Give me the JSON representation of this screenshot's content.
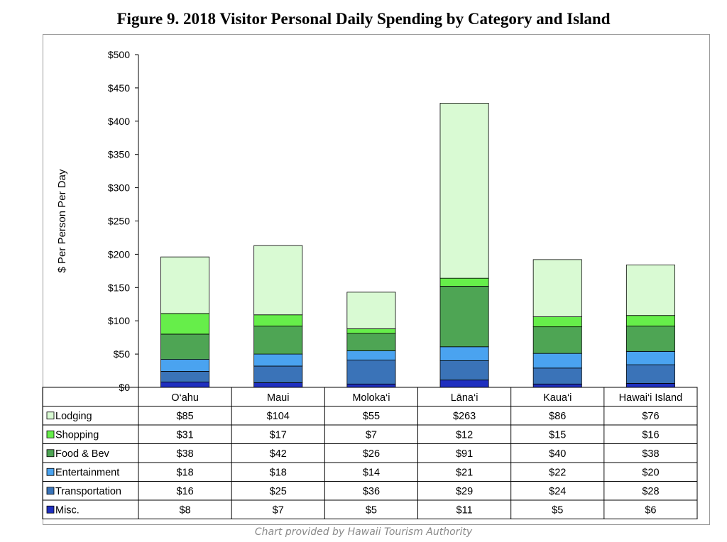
{
  "title": "Figure 9.  2018 Visitor Personal Daily Spending by Category and Island",
  "footer": "Chart provided by Hawaii Tourism Authority",
  "chart_data": {
    "type": "bar",
    "stacked": true,
    "categories": [
      "O‘ahu",
      "Maui",
      "Moloka‘i",
      "Lāna‘i",
      "Kaua‘i",
      "Hawai‘i Island"
    ],
    "ylabel": "$ Per Person Per Day",
    "xlabel": "",
    "ylim": [
      0,
      500
    ],
    "yticks": [
      0,
      50,
      100,
      150,
      200,
      250,
      300,
      350,
      400,
      450,
      500
    ],
    "ytick_labels": [
      "$0",
      "$50",
      "$100",
      "$150",
      "$200",
      "$250",
      "$300",
      "$350",
      "$400",
      "$450",
      "$500"
    ],
    "grid": false,
    "legend_placement": "data table below chart",
    "series": [
      {
        "name": "Misc.",
        "color": "#1f2fbf",
        "values": [
          8,
          7,
          5,
          11,
          5,
          6
        ],
        "labels": [
          "$8",
          "$7",
          "$5",
          "$11",
          "$5",
          "$6"
        ]
      },
      {
        "name": "Transportation",
        "color": "#3a73b8",
        "values": [
          16,
          25,
          36,
          29,
          24,
          28
        ],
        "labels": [
          "$16",
          "$25",
          "$36",
          "$29",
          "$24",
          "$28"
        ]
      },
      {
        "name": "Entertainment",
        "color": "#4aa3f0",
        "values": [
          18,
          18,
          14,
          21,
          22,
          20
        ],
        "labels": [
          "$18",
          "$18",
          "$14",
          "$21",
          "$22",
          "$20"
        ]
      },
      {
        "name": "Food & Bev",
        "color": "#4ea554",
        "values": [
          38,
          42,
          26,
          91,
          40,
          38
        ],
        "labels": [
          "$38",
          "$42",
          "$26",
          "$91",
          "$40",
          "$38"
        ]
      },
      {
        "name": "Shopping",
        "color": "#66ee4a",
        "values": [
          31,
          17,
          7,
          12,
          15,
          16
        ],
        "labels": [
          "$31",
          "$17",
          "$7",
          "$12",
          "$15",
          "$16"
        ]
      },
      {
        "name": "Lodging",
        "color": "#d9fad3",
        "values": [
          85,
          104,
          55,
          263,
          86,
          76
        ],
        "labels": [
          "$85",
          "$104",
          "$55",
          "$263",
          "$86",
          "$76"
        ]
      }
    ]
  }
}
